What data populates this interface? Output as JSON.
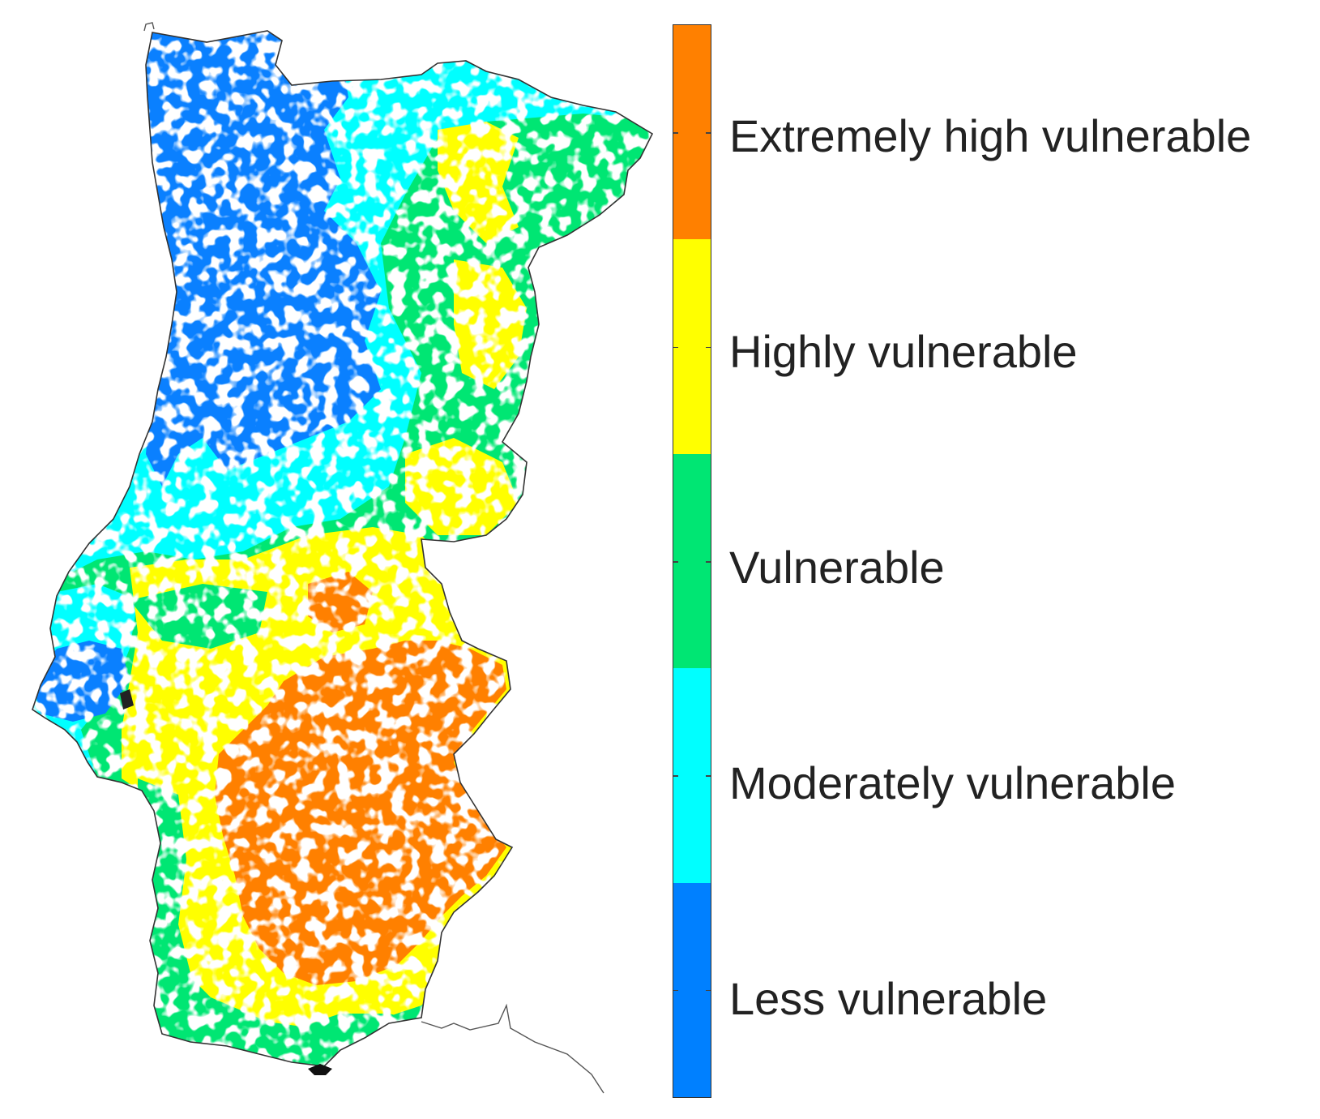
{
  "legend": {
    "classes": [
      {
        "label": "Extremely high vulnerable",
        "color": "#ff8000"
      },
      {
        "label": "Highly vulnerable",
        "color": "#ffff00"
      },
      {
        "label": "Vulnerable",
        "color": "#00e673"
      },
      {
        "label": "Moderately vulnerable",
        "color": "#00ffff"
      },
      {
        "label": "Less vulnerable",
        "color": "#0080ff"
      }
    ]
  },
  "map": {
    "region_outline_color": "#333333",
    "nodata_color": "#ffffff"
  }
}
